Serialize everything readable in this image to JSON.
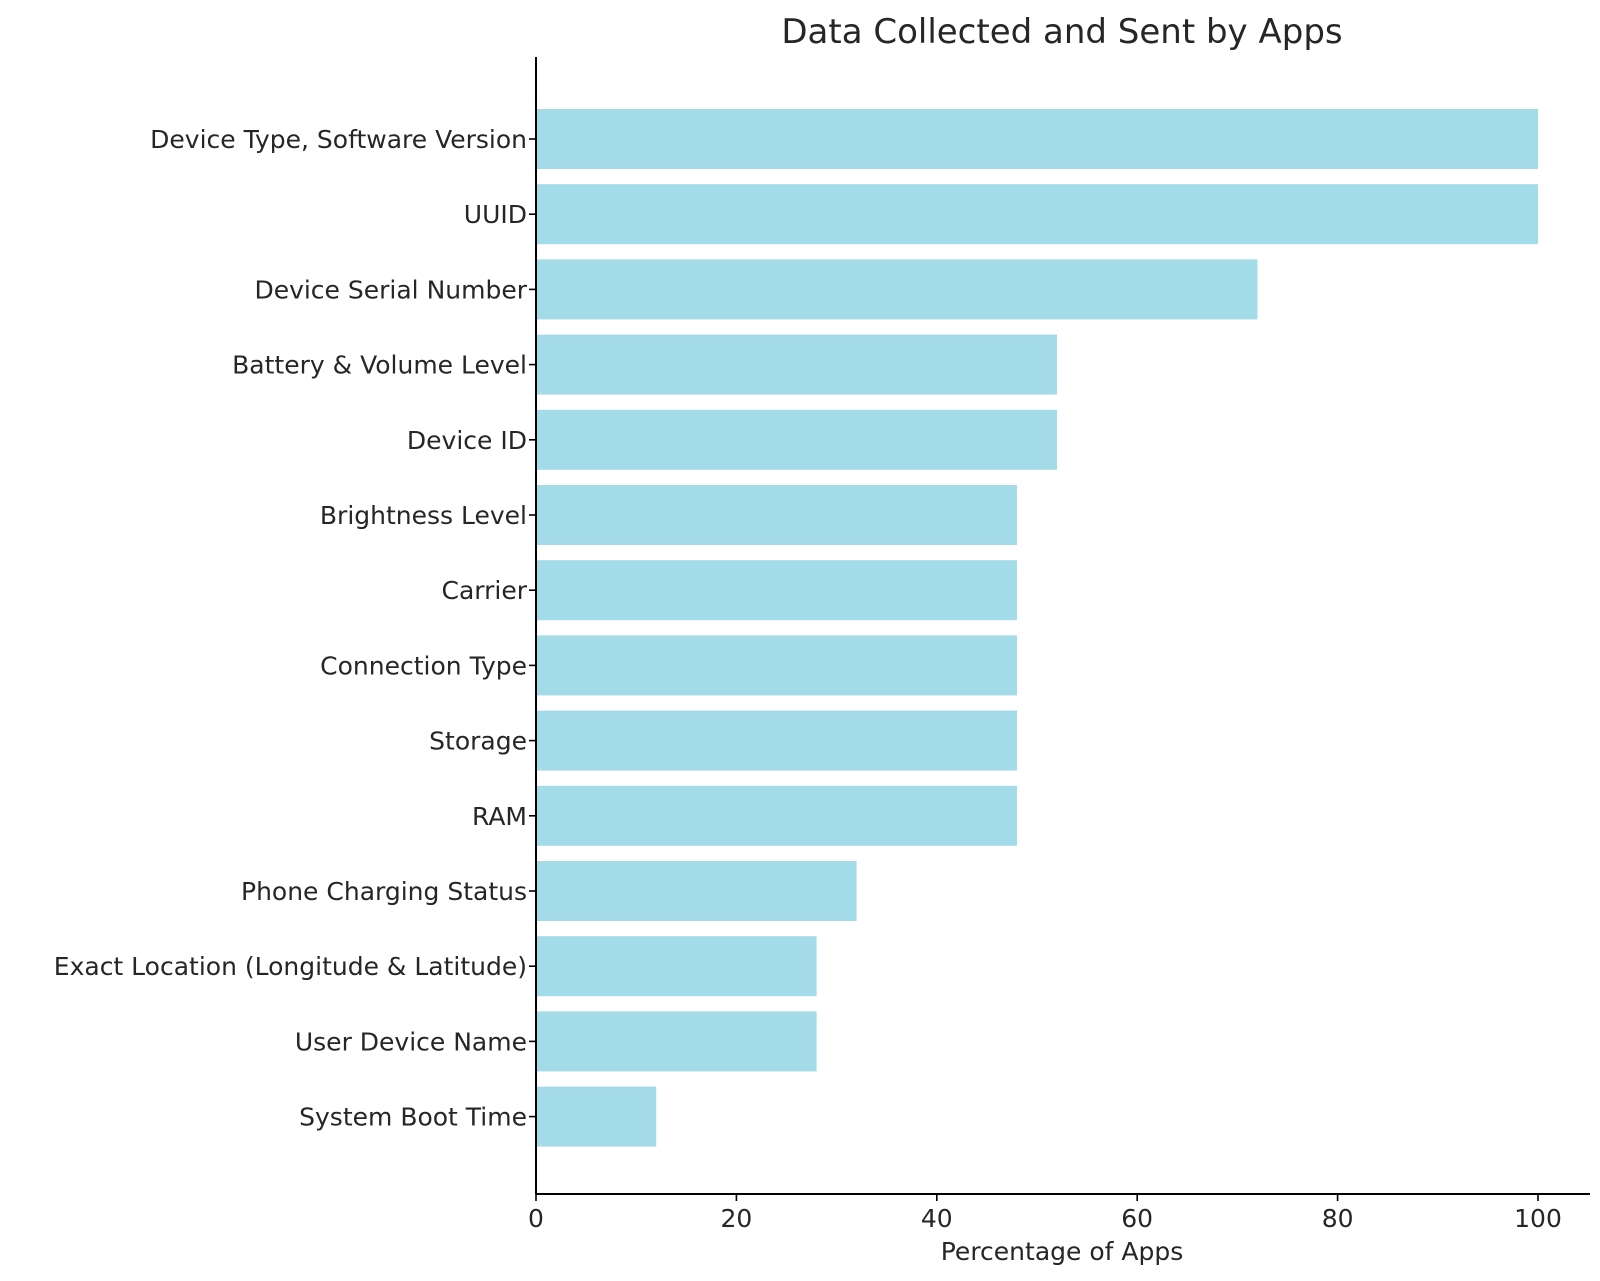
{
  "chart_data": {
    "type": "bar",
    "orientation": "horizontal",
    "title": "Data Collected and Sent by Apps",
    "xlabel": "Percentage of Apps",
    "ylabel": "",
    "xlim": [
      0,
      105
    ],
    "xticks": [
      0,
      20,
      40,
      60,
      80,
      100
    ],
    "grid": false,
    "bar_color": "#a3dbe8",
    "categories": [
      "Device Type, Software Version",
      "UUID",
      "Device Serial Number",
      "Battery & Volume Level",
      "Device ID",
      "Brightness Level",
      "Carrier",
      "Connection Type",
      "Storage",
      "RAM",
      "Phone Charging Status",
      "Exact Location (Longitude & Latitude)",
      "User Device Name",
      "System Boot Time"
    ],
    "values": [
      100,
      100,
      72,
      52,
      52,
      48,
      48,
      48,
      48,
      48,
      32,
      28,
      28,
      12
    ]
  }
}
